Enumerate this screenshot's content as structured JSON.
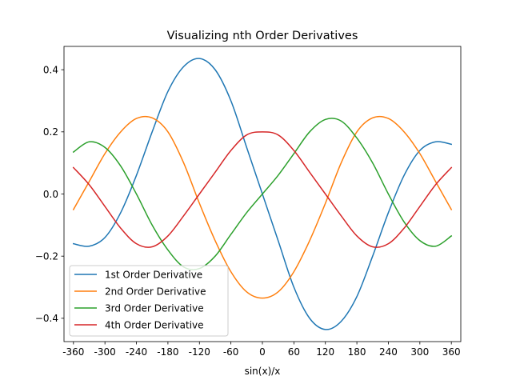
{
  "chart_data": {
    "type": "line",
    "title": "Visualizing nth Order Derivatives",
    "xlabel": "sin(x)/x",
    "ylabel": "",
    "xlim": [
      -378,
      378
    ],
    "ylim": [
      -0.475,
      0.475
    ],
    "x_ticks": [
      -360,
      -300,
      -240,
      -180,
      -120,
      -60,
      0,
      60,
      120,
      180,
      240,
      300,
      360
    ],
    "y_ticks": [
      -0.4,
      -0.2,
      0.0,
      0.2,
      0.4
    ],
    "y_tick_labels": [
      "−0.4",
      "−0.2",
      "0.0",
      "0.2",
      "0.4"
    ],
    "grid": false,
    "legend_position": "lower-left",
    "x": [
      -360,
      -330,
      -300,
      -270,
      -240,
      -210,
      -180,
      -150,
      -120,
      -90,
      -60,
      -30,
      0,
      30,
      60,
      90,
      120,
      150,
      180,
      210,
      240,
      270,
      300,
      330,
      360
    ],
    "series": [
      {
        "name": "1st Order Derivative",
        "color": "#1f77b4",
        "values": [
          -0.16,
          -0.168,
          -0.14,
          -0.06,
          0.06,
          0.2,
          0.33,
          0.41,
          0.436,
          0.4,
          0.3,
          0.15,
          0.0,
          -0.15,
          -0.3,
          -0.4,
          -0.436,
          -0.41,
          -0.33,
          -0.2,
          -0.06,
          0.06,
          0.14,
          0.168,
          0.16
        ]
      },
      {
        "name": "2nd Order Derivative",
        "color": "#ff7f0e",
        "values": [
          -0.05,
          0.04,
          0.13,
          0.2,
          0.243,
          0.245,
          0.2,
          0.1,
          -0.03,
          -0.15,
          -0.25,
          -0.315,
          -0.335,
          -0.315,
          -0.25,
          -0.15,
          -0.03,
          0.1,
          0.2,
          0.245,
          0.243,
          0.2,
          0.13,
          0.04,
          -0.05
        ]
      },
      {
        "name": "3rd Order Derivative",
        "color": "#2ca02c",
        "values": [
          0.135,
          0.168,
          0.15,
          0.09,
          0.0,
          -0.1,
          -0.18,
          -0.235,
          -0.24,
          -0.2,
          -0.13,
          -0.06,
          0.0,
          0.06,
          0.13,
          0.2,
          0.24,
          0.235,
          0.18,
          0.1,
          0.0,
          -0.09,
          -0.15,
          -0.168,
          -0.135
        ]
      },
      {
        "name": "4th Order Derivative",
        "color": "#d62728",
        "values": [
          0.085,
          0.03,
          -0.04,
          -0.11,
          -0.16,
          -0.17,
          -0.135,
          -0.07,
          0.0,
          0.07,
          0.14,
          0.19,
          0.2,
          0.19,
          0.14,
          0.07,
          0.0,
          -0.07,
          -0.135,
          -0.17,
          -0.16,
          -0.11,
          -0.04,
          0.03,
          0.085
        ]
      }
    ]
  }
}
